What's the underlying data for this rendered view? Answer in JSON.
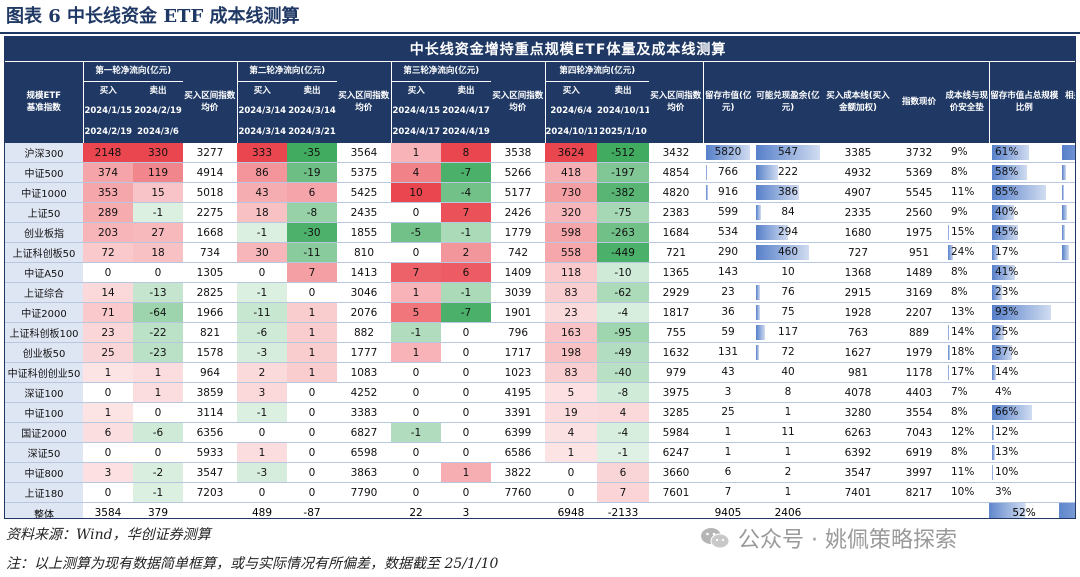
{
  "figure_title": "图表 6    中长线资金 ETF 成本线测算",
  "table_title": "中长线资金增持重点规模ETF体量及成本线测算",
  "headers": {
    "name": "规模ETF\n基准指数",
    "r1": "第一轮净流向(亿元)",
    "r2": "第二轮净流向(亿元)",
    "r3": "第三轮净流向(亿元)",
    "r4": "第四轮净流向(亿元)",
    "buy": "买入",
    "sell": "卖出",
    "avg": "买入区间指数均价",
    "r1_d1": "2024/1/15",
    "r1_d2": "2024/2/19",
    "r1_d3": "2024/2/19",
    "r1_d4": "2024/3/6",
    "r2_d1": "2024/3/14",
    "r2_d2": "2024/3/14",
    "r2_d3": "2024/3/14",
    "r2_d4": "2024/3/21",
    "r3_d1": "2024/4/15",
    "r3_d2": "2024/4/17",
    "r3_d3": "2024/4/17",
    "r3_d4": "2024/4/19",
    "r4_d1": "2024/6/4",
    "r4_d2": "2024/10/11",
    "r4_d3": "2024/10/11",
    "r4_d4": "2025/1/10",
    "retained": "留存市值(亿元)",
    "float_profit": "可能兑现盈余(亿元)",
    "cost_line": "买入成本线(买入金额加权)",
    "index_now": "指数现价",
    "safety": "成本线与现价安全垫",
    "ratio": "留存市值占总规模比例",
    "etf_size": "相关ETF总规模(亿元)"
  },
  "colors": {
    "header_bg": "#1f3864",
    "name_bg": "#dfe6f3",
    "pos": "#e8323c",
    "neg": "#2ca24f",
    "bar_blue": "#4472c4"
  },
  "rows": [
    {
      "name": "沪深300",
      "r1b": "2148",
      "r1s": "330",
      "r1a": "3277",
      "r2b": "333",
      "r2s": "-35",
      "r2a": "3564",
      "r3b": "1",
      "r3s": "8",
      "r3a": "3538",
      "r4b": "3624",
      "r4s": "-512",
      "r4a": "3432",
      "ret": "5820",
      "fp": "547",
      "cost": "3385",
      "idx": "3732",
      "safe": "9%",
      "ratio": "61%",
      "size": "9489"
    },
    {
      "name": "中证500",
      "r1b": "374",
      "r1s": "119",
      "r1a": "4914",
      "r2b": "86",
      "r2s": "-19",
      "r2a": "5375",
      "r3b": "4",
      "r3s": "-7",
      "r3a": "5266",
      "r4b": "418",
      "r4s": "-197",
      "r4a": "4854",
      "ret": "766",
      "fp": "222",
      "cost": "4932",
      "idx": "5369",
      "safe": "8%",
      "ratio": "58%",
      "size": "1320"
    },
    {
      "name": "中证1000",
      "r1b": "353",
      "r1s": "15",
      "r1a": "5018",
      "r2b": "43",
      "r2s": "6",
      "r2a": "5425",
      "r3b": "10",
      "r3s": "-4",
      "r3a": "5177",
      "r4b": "730",
      "r4s": "-382",
      "r4a": "4820",
      "ret": "916",
      "fp": "386",
      "cost": "4907",
      "idx": "5545",
      "safe": "11%",
      "ratio": "85%",
      "size": "1073"
    },
    {
      "name": "上证50",
      "r1b": "289",
      "r1s": "-1",
      "r1a": "2275",
      "r2b": "18",
      "r2s": "-8",
      "r2a": "2435",
      "r3b": "0",
      "r3s": "7",
      "r3a": "2426",
      "r4b": "320",
      "r4s": "-75",
      "r4a": "2383",
      "ret": "599",
      "fp": "84",
      "cost": "2335",
      "idx": "2560",
      "safe": "9%",
      "ratio": "40%",
      "size": "1506"
    },
    {
      "name": "创业板指",
      "r1b": "203",
      "r1s": "27",
      "r1a": "1668",
      "r2b": "-1",
      "r2s": "-30",
      "r2a": "1855",
      "r3b": "-5",
      "r3s": "-1",
      "r3a": "1779",
      "r4b": "598",
      "r4s": "-263",
      "r4a": "1684",
      "ret": "534",
      "fp": "294",
      "cost": "1680",
      "idx": "1975",
      "safe": "15%",
      "ratio": "45%",
      "size": "1183"
    },
    {
      "name": "上证科创板50",
      "r1b": "72",
      "r1s": "18",
      "r1a": "734",
      "r2b": "30",
      "r2s": "-11",
      "r2a": "810",
      "r3b": "0",
      "r3s": "2",
      "r3a": "742",
      "r4b": "558",
      "r4s": "-449",
      "r4a": "721",
      "ret": "290",
      "fp": "460",
      "cost": "727",
      "idx": "951",
      "safe": "24%",
      "ratio": "17%",
      "size": "1759"
    },
    {
      "name": "中证A50",
      "r1b": "0",
      "r1s": "0",
      "r1a": "1305",
      "r2b": "0",
      "r2s": "7",
      "r2a": "1413",
      "r3b": "7",
      "r3s": "6",
      "r3a": "1409",
      "r4b": "118",
      "r4s": "-10",
      "r4a": "1365",
      "ret": "143",
      "fp": "10",
      "cost": "1368",
      "idx": "1489",
      "safe": "8%",
      "ratio": "41%",
      "size": "345"
    },
    {
      "name": "上证综合",
      "r1b": "14",
      "r1s": "-13",
      "r1a": "2825",
      "r2b": "-1",
      "r2s": "0",
      "r2a": "3046",
      "r3b": "1",
      "r3s": "-1",
      "r3a": "3039",
      "r4b": "83",
      "r4s": "-62",
      "r4a": "2929",
      "ret": "23",
      "fp": "76",
      "cost": "2915",
      "idx": "3169",
      "safe": "8%",
      "ratio": "23%",
      "size": "103"
    },
    {
      "name": "中证2000",
      "r1b": "71",
      "r1s": "-64",
      "r1a": "1966",
      "r2b": "-11",
      "r2s": "1",
      "r2a": "2076",
      "r3b": "5",
      "r3s": "-7",
      "r3a": "1901",
      "r4b": "23",
      "r4s": "-4",
      "r4a": "1817",
      "ret": "36",
      "fp": "75",
      "cost": "1928",
      "idx": "2207",
      "safe": "13%",
      "ratio": "93%",
      "size": "39"
    },
    {
      "name": "上证科创板100",
      "r1b": "23",
      "r1s": "-22",
      "r1a": "821",
      "r2b": "-6",
      "r2s": "1",
      "r2a": "882",
      "r3b": "-1",
      "r3s": "0",
      "r3a": "796",
      "r4b": "163",
      "r4s": "-95",
      "r4a": "755",
      "ret": "59",
      "fp": "117",
      "cost": "763",
      "idx": "889",
      "safe": "14%",
      "ratio": "25%",
      "size": "237"
    },
    {
      "name": "创业板50",
      "r1b": "25",
      "r1s": "-23",
      "r1a": "1578",
      "r2b": "-3",
      "r2s": "1",
      "r2a": "1777",
      "r3b": "1",
      "r3s": "0",
      "r3a": "1717",
      "r4b": "198",
      "r4s": "-49",
      "r4a": "1632",
      "ret": "131",
      "fp": "72",
      "cost": "1627",
      "idx": "1979",
      "safe": "18%",
      "ratio": "37%",
      "size": "350"
    },
    {
      "name": "中证科创创业50",
      "r1b": "1",
      "r1s": "1",
      "r1a": "964",
      "r2b": "2",
      "r2s": "1",
      "r2a": "1083",
      "r3b": "0",
      "r3s": "0",
      "r3a": "1023",
      "r4b": "83",
      "r4s": "-40",
      "r4a": "979",
      "ret": "43",
      "fp": "40",
      "cost": "981",
      "idx": "1178",
      "safe": "17%",
      "ratio": "14%",
      "size": "317"
    },
    {
      "name": "深证100",
      "r1b": "0",
      "r1s": "1",
      "r1a": "3859",
      "r2b": "3",
      "r2s": "0",
      "r2a": "4252",
      "r3b": "0",
      "r3s": "0",
      "r3a": "4195",
      "r4b": "5",
      "r4s": "-8",
      "r4a": "3975",
      "ret": "3",
      "fp": "8",
      "cost": "4078",
      "idx": "4403",
      "safe": "7%",
      "ratio": "4%",
      "size": "72"
    },
    {
      "name": "中证100",
      "r1b": "1",
      "r1s": "0",
      "r1a": "3114",
      "r2b": "-1",
      "r2s": "0",
      "r2a": "3383",
      "r3b": "0",
      "r3s": "0",
      "r3a": "3391",
      "r4b": "19",
      "r4s": "4",
      "r4a": "3285",
      "ret": "25",
      "fp": "1",
      "cost": "3280",
      "idx": "3554",
      "safe": "8%",
      "ratio": "66%",
      "size": "38"
    },
    {
      "name": "国证2000",
      "r1b": "6",
      "r1s": "-6",
      "r1a": "6356",
      "r2b": "0",
      "r2s": "0",
      "r2a": "6827",
      "r3b": "-1",
      "r3s": "0",
      "r3a": "6399",
      "r4b": "4",
      "r4s": "-4",
      "r4a": "5984",
      "ret": "1",
      "fp": "11",
      "cost": "6263",
      "idx": "7043",
      "safe": "12%",
      "ratio": "12%",
      "size": "9"
    },
    {
      "name": "深证50",
      "r1b": "0",
      "r1s": "0",
      "r1a": "5933",
      "r2b": "1",
      "r2s": "0",
      "r2a": "6598",
      "r3b": "0",
      "r3s": "0",
      "r3a": "6586",
      "r4b": "1",
      "r4s": "-1",
      "r4a": "6247",
      "ret": "1",
      "fp": "1",
      "cost": "6392",
      "idx": "6919",
      "safe": "8%",
      "ratio": "13%",
      "size": "8"
    },
    {
      "name": "中证800",
      "r1b": "3",
      "r1s": "-2",
      "r1a": "3547",
      "r2b": "-3",
      "r2s": "0",
      "r2a": "3863",
      "r3b": "0",
      "r3s": "1",
      "r3a": "3822",
      "r4b": "0",
      "r4s": "6",
      "r4a": "3660",
      "ret": "6",
      "fp": "2",
      "cost": "3547",
      "idx": "3997",
      "safe": "11%",
      "ratio": "10%",
      "size": "62"
    },
    {
      "name": "上证180",
      "r1b": "0",
      "r1s": "-1",
      "r1a": "7203",
      "r2b": "0",
      "r2s": "0",
      "r2a": "7790",
      "r3b": "0",
      "r3s": "0",
      "r3a": "7760",
      "r4b": "0",
      "r4s": "7",
      "r4a": "7601",
      "ret": "7",
      "fp": "1",
      "cost": "7401",
      "idx": "8217",
      "safe": "10%",
      "ratio": "3%",
      "size": "204"
    }
  ],
  "total": {
    "name": "整体",
    "r1b": "3584",
    "r1s": "379",
    "r2b": "489",
    "r2s": "-87",
    "r3b": "22",
    "r3s": "3",
    "r4b": "6948",
    "r4s": "-2133",
    "ret": "9405",
    "fp": "2406",
    "ratio": "52%",
    "size": "18114"
  },
  "footnotes": {
    "source": "资料来源：Wind，华创证券测算",
    "note": "注：以上测算为现有数据简单框算，或与实际情况有所偏差，数据截至 25/1/10"
  },
  "watermark": "公众号 · 姚佩策略探索"
}
